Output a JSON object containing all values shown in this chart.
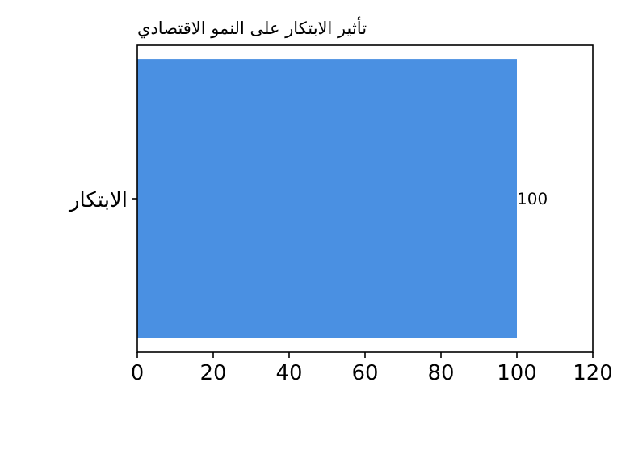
{
  "chart_data": {
    "type": "bar",
    "orientation": "horizontal",
    "title": "تأثير الابتكار على النمو الاقتصادي",
    "categories": [
      "الابتكار"
    ],
    "values": [
      100
    ],
    "color": "#4a90e2",
    "xlim": [
      0,
      120
    ],
    "xticks": [
      0,
      20,
      40,
      60,
      80,
      100,
      120
    ],
    "data_labels": true
  }
}
